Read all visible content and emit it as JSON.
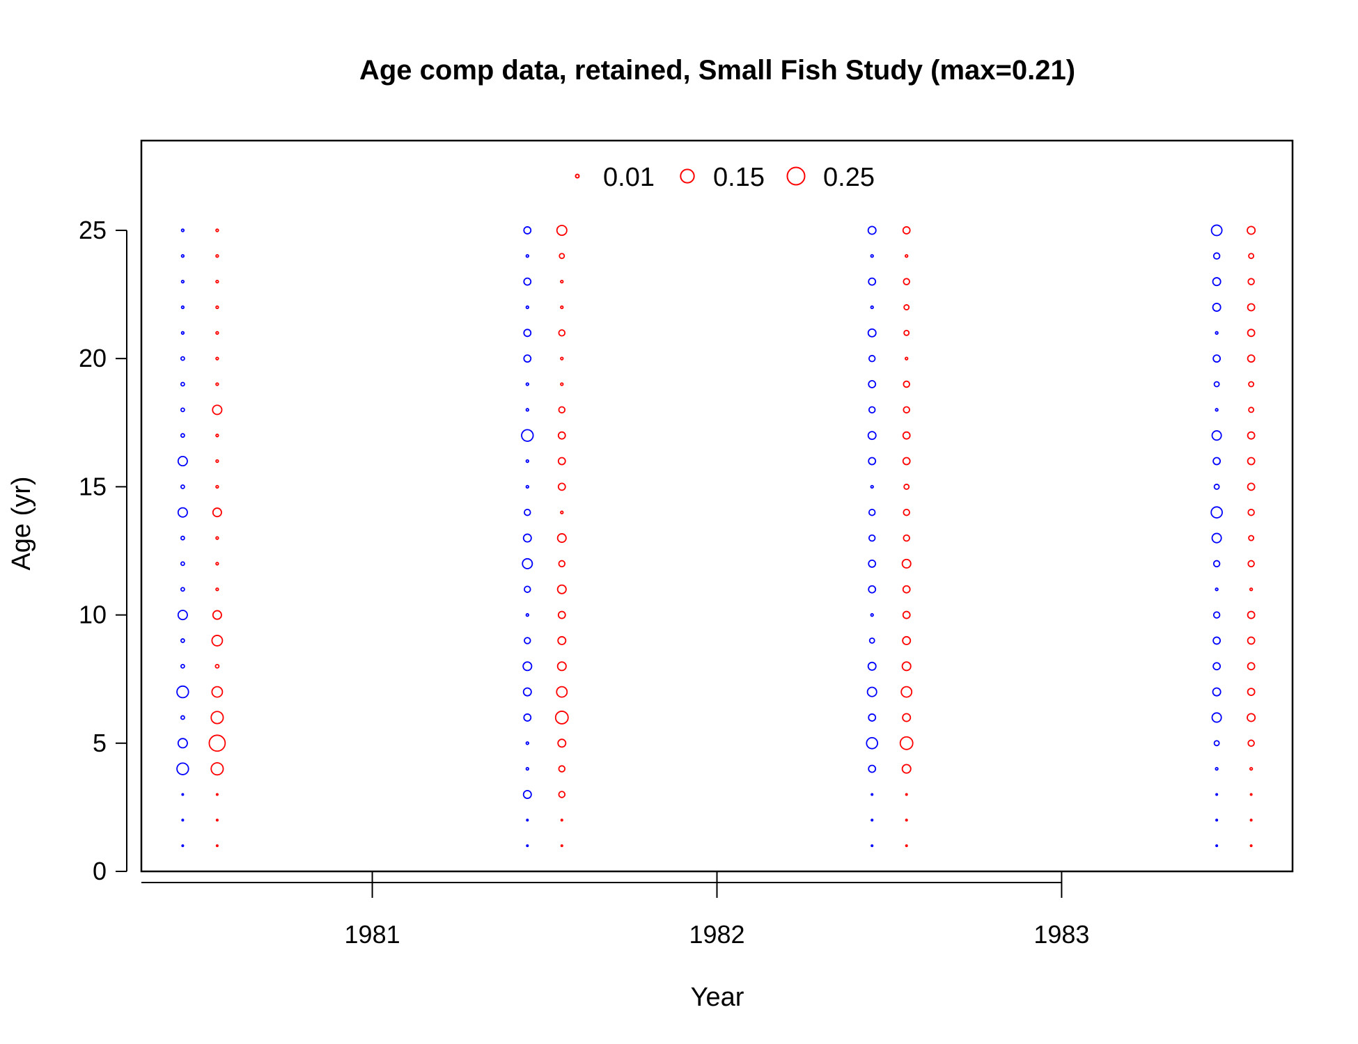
{
  "chart_data": {
    "type": "scatter",
    "subtype": "bubble",
    "title": "Age comp data, retained, Small Fish Study (max=0.21)",
    "xlabel": "Year",
    "ylabel": "Age (yr)",
    "x_ticks": [
      "1981",
      "1982",
      "1983"
    ],
    "y_ticks": [
      "0",
      "5",
      "10",
      "15",
      "20",
      "25"
    ],
    "xlim": [
      1980.33,
      1983.67
    ],
    "ylim": [
      0,
      28.5
    ],
    "grid": false,
    "legend": {
      "placement": "top-center",
      "color": "#ff0000",
      "entries": [
        {
          "label": "0.01",
          "value": 0.01
        },
        {
          "label": "0.15",
          "value": 0.15
        },
        {
          "label": "0.25",
          "value": 0.25
        }
      ]
    },
    "ages": [
      1,
      2,
      3,
      4,
      5,
      6,
      7,
      8,
      9,
      10,
      11,
      12,
      13,
      14,
      15,
      16,
      17,
      18,
      19,
      20,
      21,
      22,
      23,
      24,
      25
    ],
    "series": [
      {
        "sex_color": "#0000ff",
        "year": 1980.45,
        "values": [
          0.002,
          0.002,
          0.002,
          0.11,
          0.07,
          0.01,
          0.11,
          0.01,
          0.01,
          0.07,
          0.01,
          0.01,
          0.01,
          0.07,
          0.01,
          0.07,
          0.01,
          0.01,
          0.01,
          0.01,
          0.005,
          0.005,
          0.005,
          0.005,
          0.005
        ]
      },
      {
        "sex_color": "#ff0000",
        "year": 1980.55,
        "values": [
          0.002,
          0.002,
          0.002,
          0.12,
          0.21,
          0.12,
          0.09,
          0.01,
          0.09,
          0.06,
          0.005,
          0.005,
          0.005,
          0.06,
          0.005,
          0.005,
          0.005,
          0.07,
          0.005,
          0.005,
          0.005,
          0.005,
          0.005,
          0.005,
          0.005
        ]
      },
      {
        "sex_color": "#0000ff",
        "year": 1981.45,
        "values": [
          0.002,
          0.002,
          0.05,
          0.005,
          0.005,
          0.04,
          0.05,
          0.06,
          0.03,
          0.005,
          0.03,
          0.08,
          0.05,
          0.03,
          0.005,
          0.005,
          0.11,
          0.005,
          0.005,
          0.04,
          0.04,
          0.005,
          0.04,
          0.005,
          0.04
        ]
      },
      {
        "sex_color": "#ff0000",
        "year": 1981.55,
        "values": [
          0.002,
          0.002,
          0.03,
          0.03,
          0.05,
          0.13,
          0.09,
          0.06,
          0.05,
          0.04,
          0.06,
          0.03,
          0.06,
          0.005,
          0.04,
          0.04,
          0.04,
          0.03,
          0.005,
          0.005,
          0.03,
          0.005,
          0.005,
          0.02,
          0.08
        ]
      },
      {
        "sex_color": "#0000ff",
        "year": 1982.45,
        "values": [
          0.002,
          0.002,
          0.002,
          0.04,
          0.1,
          0.04,
          0.07,
          0.05,
          0.02,
          0.005,
          0.04,
          0.04,
          0.03,
          0.03,
          0.005,
          0.04,
          0.05,
          0.03,
          0.04,
          0.03,
          0.05,
          0.005,
          0.04,
          0.005,
          0.05
        ]
      },
      {
        "sex_color": "#ff0000",
        "year": 1982.55,
        "values": [
          0.002,
          0.002,
          0.002,
          0.06,
          0.13,
          0.05,
          0.09,
          0.06,
          0.05,
          0.04,
          0.04,
          0.06,
          0.03,
          0.03,
          0.02,
          0.04,
          0.04,
          0.03,
          0.03,
          0.005,
          0.02,
          0.02,
          0.03,
          0.005,
          0.04
        ]
      },
      {
        "sex_color": "#0000ff",
        "year": 1983.45,
        "values": [
          0.002,
          0.002,
          0.002,
          0.005,
          0.02,
          0.07,
          0.05,
          0.04,
          0.04,
          0.03,
          0.005,
          0.03,
          0.07,
          0.1,
          0.02,
          0.04,
          0.07,
          0.005,
          0.02,
          0.04,
          0.005,
          0.05,
          0.05,
          0.03,
          0.09
        ]
      },
      {
        "sex_color": "#ff0000",
        "year": 1983.55,
        "values": [
          0.002,
          0.002,
          0.002,
          0.005,
          0.03,
          0.05,
          0.04,
          0.04,
          0.04,
          0.04,
          0.005,
          0.03,
          0.02,
          0.03,
          0.04,
          0.04,
          0.04,
          0.02,
          0.02,
          0.04,
          0.04,
          0.04,
          0.03,
          0.02,
          0.05
        ]
      }
    ]
  }
}
